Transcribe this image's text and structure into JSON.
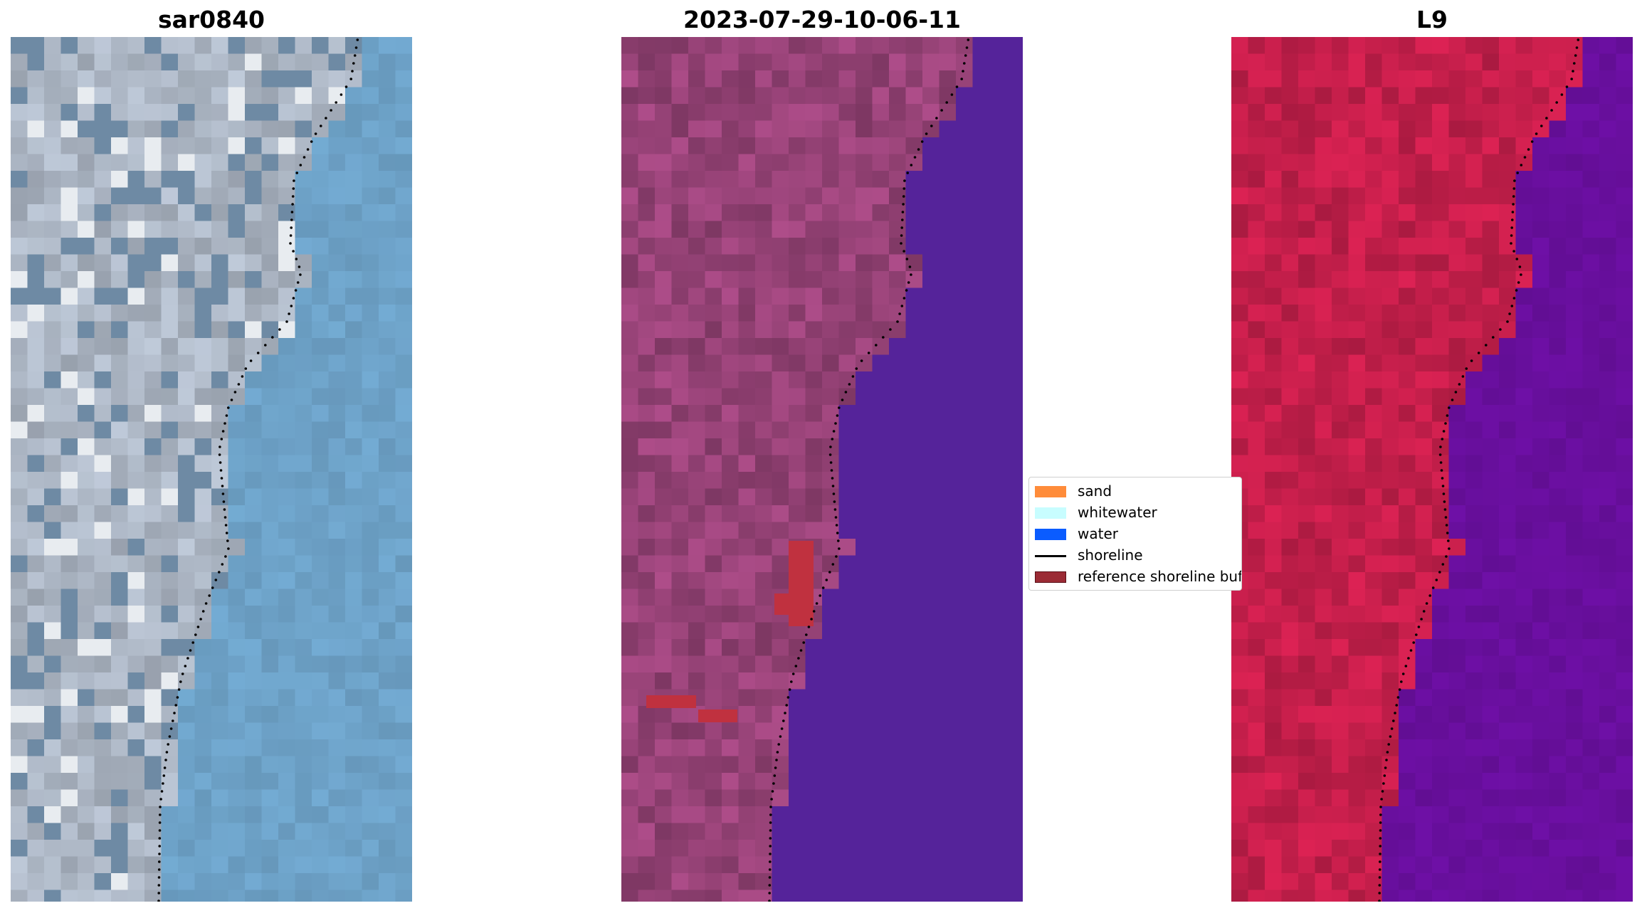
{
  "panels": [
    {
      "title": "sar0840",
      "palette": "rgb"
    },
    {
      "title": "2023-07-29-10-06-11",
      "palette": "classified"
    },
    {
      "title": "L9",
      "palette": "falsecolor"
    }
  ],
  "legend": {
    "items": [
      {
        "label": "sand",
        "color": "#ff8c3a",
        "kind": "patch"
      },
      {
        "label": "whitewater",
        "color": "#c8fdff",
        "kind": "patch"
      },
      {
        "label": "water",
        "color": "#0a5cff",
        "kind": "patch"
      },
      {
        "label": "shoreline",
        "color": "#000000",
        "kind": "line"
      },
      {
        "label": "reference shoreline buffer",
        "color": "#9b2b35",
        "kind": "patch"
      }
    ]
  },
  "colors": {
    "rgb_land": "#aeb8c6",
    "rgb_water": "#6ea3c9",
    "class_land": "#a1477f",
    "class_water": "#55239a",
    "class_buffer": "#c0313f",
    "fc_land": "#c81f4c",
    "fc_water": "#6a0fa0"
  }
}
